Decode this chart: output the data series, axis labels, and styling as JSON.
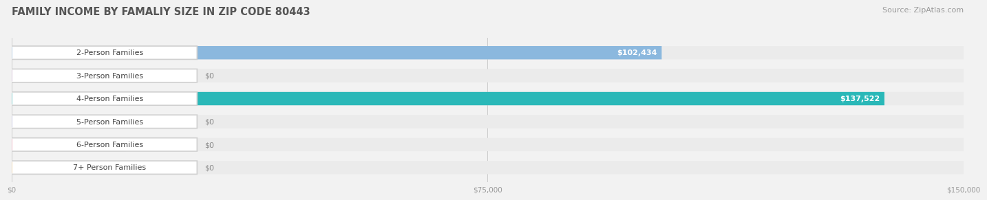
{
  "title": "FAMILY INCOME BY FAMALIY SIZE IN ZIP CODE 80443",
  "source": "Source: ZipAtlas.com",
  "categories": [
    "2-Person Families",
    "3-Person Families",
    "4-Person Families",
    "5-Person Families",
    "6-Person Families",
    "7+ Person Families"
  ],
  "values": [
    102434,
    0,
    137522,
    0,
    0,
    0
  ],
  "bar_colors": [
    "#8bb8de",
    "#c9a8cc",
    "#2ab8b8",
    "#b0aedc",
    "#f090aa",
    "#f5c98a"
  ],
  "bar_value_labels": [
    "$102,434",
    "$0",
    "$137,522",
    "$0",
    "$0",
    "$0"
  ],
  "xlim": [
    0,
    150000
  ],
  "xticks": [
    0,
    75000,
    150000
  ],
  "xticklabels": [
    "$0",
    "$75,000",
    "$150,000"
  ],
  "bg_color": "#f2f2f2",
  "bar_bg_color": "#e2e2e2",
  "row_bg_color": "#ebebeb",
  "title_fontsize": 10.5,
  "source_fontsize": 8,
  "label_fontsize": 8,
  "value_fontsize": 8,
  "zero_stub": 18000
}
